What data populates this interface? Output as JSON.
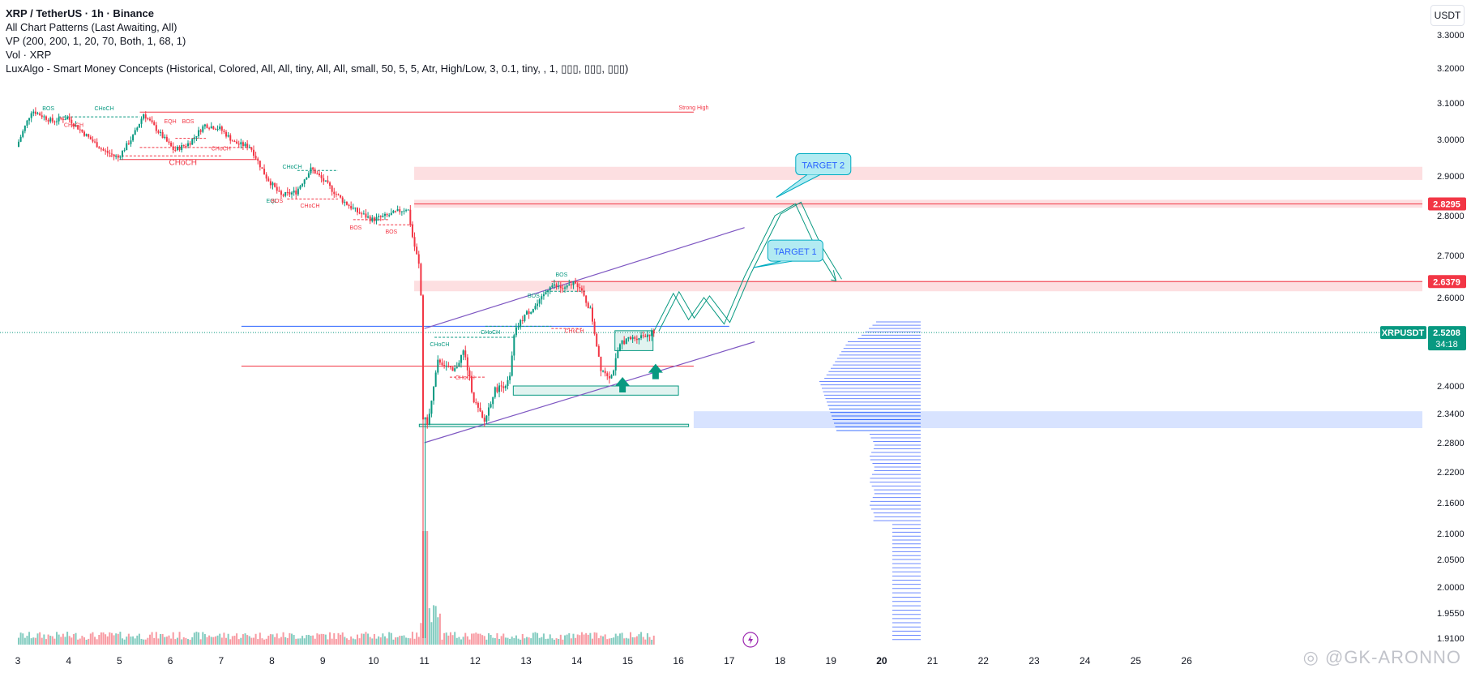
{
  "legend": {
    "line1": "XRP / TetherUS · 1h · Binance",
    "line2": "All Chart Patterns (Last Awaiting, All)",
    "line3": "VP (200, 200, 1, 20, 70, Both, 1, 68, 1)",
    "line4": "Vol · XRP",
    "line5": "LuxAlgo - Smart Money Concepts (Historical, Colored, All, All, tiny, All, All, small, 50, 5, 5, Atr, High/Low, 3, 0.1, tiny, , 1, ▯▯▯, ▯▯▯, ▯▯▯)"
  },
  "currency_button": "USDT",
  "watermark": "◎ @GK-ARONNO",
  "colors": {
    "up": "#089981",
    "down": "#f23645",
    "accent_blue": "#2962ff",
    "vp": "#2962ff",
    "purple": "#7e57c2"
  },
  "chart_data": {
    "type": "candlestick",
    "symbol": "XRPUSDT",
    "interval": "1h",
    "x_ticks": [
      "3",
      "4",
      "5",
      "6",
      "7",
      "8",
      "9",
      "10",
      "11",
      "12",
      "13",
      "14",
      "15",
      "16",
      "17",
      "18",
      "19",
      "20",
      "21",
      "22",
      "23",
      "24",
      "25",
      "26"
    ],
    "y_ticks": [
      "3.3000",
      "3.2000",
      "3.1000",
      "3.0000",
      "2.9000",
      "2.8000",
      "2.7000",
      "2.6000",
      "2.4000",
      "2.3400",
      "2.2800",
      "2.2200",
      "2.1600",
      "2.1000",
      "2.0500",
      "2.0000",
      "1.9550",
      "1.9100"
    ],
    "y_range": [
      1.9,
      3.35
    ],
    "price_path": [
      [
        3.0,
        2.98
      ],
      [
        3.3,
        3.08
      ],
      [
        3.7,
        3.05
      ],
      [
        4.0,
        3.06
      ],
      [
        4.3,
        3.02
      ],
      [
        4.7,
        2.97
      ],
      [
        5.0,
        2.95
      ],
      [
        5.3,
        3.01
      ],
      [
        5.5,
        3.07
      ],
      [
        5.8,
        3.02
      ],
      [
        6.1,
        2.97
      ],
      [
        6.4,
        2.99
      ],
      [
        6.7,
        3.04
      ],
      [
        7.0,
        3.03
      ],
      [
        7.3,
        2.99
      ],
      [
        7.6,
        2.98
      ],
      [
        7.9,
        2.9
      ],
      [
        8.2,
        2.85
      ],
      [
        8.5,
        2.86
      ],
      [
        8.8,
        2.92
      ],
      [
        9.1,
        2.88
      ],
      [
        9.4,
        2.84
      ],
      [
        9.7,
        2.81
      ],
      [
        10.0,
        2.79
      ],
      [
        10.3,
        2.8
      ],
      [
        10.7,
        2.82
      ],
      [
        10.8,
        2.74
      ],
      [
        10.95,
        2.66
      ],
      [
        11.0,
        2.33
      ],
      [
        11.1,
        2.32
      ],
      [
        11.3,
        2.46
      ],
      [
        11.6,
        2.43
      ],
      [
        11.8,
        2.48
      ],
      [
        12.0,
        2.37
      ],
      [
        12.2,
        2.32
      ],
      [
        12.4,
        2.39
      ],
      [
        12.7,
        2.41
      ],
      [
        12.8,
        2.52
      ],
      [
        13.0,
        2.56
      ],
      [
        13.3,
        2.59
      ],
      [
        13.5,
        2.63
      ],
      [
        13.8,
        2.62
      ],
      [
        14.0,
        2.64
      ],
      [
        14.3,
        2.57
      ],
      [
        14.5,
        2.44
      ],
      [
        14.7,
        2.42
      ],
      [
        14.9,
        2.5
      ],
      [
        15.2,
        2.51
      ],
      [
        15.5,
        2.52
      ]
    ],
    "volume_x_range": [
      3,
      15.5
    ],
    "projection_path": [
      [
        15.5,
        2.52
      ],
      [
        15.9,
        2.61
      ],
      [
        16.2,
        2.55
      ],
      [
        16.5,
        2.6
      ],
      [
        16.9,
        2.54
      ],
      [
        17.3,
        2.65
      ],
      [
        17.9,
        2.8
      ],
      [
        18.3,
        2.83
      ],
      [
        18.7,
        2.72
      ],
      [
        19.1,
        2.64
      ]
    ],
    "pattern_upper_line": [
      [
        11.0,
        2.53
      ],
      [
        17.3,
        2.77
      ]
    ],
    "pattern_lower_line": [
      [
        11.0,
        2.28
      ],
      [
        17.5,
        2.5
      ]
    ],
    "blue_horizontal": {
      "price": 2.535,
      "from": 7.4,
      "to": 17.0
    },
    "red_horizontal": {
      "price": 2.445,
      "from": 7.4,
      "to": 16.3
    },
    "strong_high": {
      "price": 3.075,
      "from": 5.4,
      "to": 16.3
    },
    "supply_zones": [
      {
        "lo": 2.89,
        "hi": 2.925
      },
      {
        "lo": 2.82,
        "hi": 2.84
      },
      {
        "lo": 2.615,
        "hi": 2.64
      }
    ],
    "demand_zone": {
      "lo": 2.31,
      "hi": 2.345
    },
    "green_boxes": [
      {
        "x0": 12.75,
        "x1": 16.0,
        "lo": 2.38,
        "hi": 2.4
      },
      {
        "x0": 10.9,
        "x1": 16.2,
        "lo": 2.313,
        "hi": 2.318
      },
      {
        "x0": 14.75,
        "x1": 15.5,
        "lo": 2.48,
        "hi": 2.525
      }
    ],
    "markers": {
      "current_price": "2.5208",
      "countdown": "34:18",
      "symbol_label": "XRPUSDT",
      "level_1": "2.8295",
      "level_2": "2.6379"
    },
    "callouts": [
      {
        "text": "TARGET 2",
        "x": 18.85,
        "price": 2.93
      },
      {
        "text": "TARGET 1",
        "x": 18.3,
        "price": 2.71
      }
    ],
    "smc_labels": [
      {
        "text": "BOS",
        "x": 3.6,
        "price": 3.08,
        "c": "up"
      },
      {
        "text": "CHoCH",
        "x": 4.7,
        "price": 3.08,
        "c": "up"
      },
      {
        "text": "CHoCH",
        "x": 4.1,
        "price": 3.035,
        "c": "down"
      },
      {
        "text": "EQH",
        "x": 6.0,
        "price": 3.045,
        "c": "down"
      },
      {
        "text": "BOS",
        "x": 6.35,
        "price": 3.045,
        "c": "down"
      },
      {
        "text": "CHoCH",
        "x": 7.0,
        "price": 2.97,
        "c": "down"
      },
      {
        "text": "CHoCH",
        "x": 6.25,
        "price": 2.93,
        "c": "down"
      },
      {
        "text": "CHoCH",
        "x": 8.4,
        "price": 2.92,
        "c": "up"
      },
      {
        "text": "EQL",
        "x": 8.0,
        "price": 2.833,
        "c": "up"
      },
      {
        "text": "BOS",
        "x": 8.1,
        "price": 2.833,
        "c": "down"
      },
      {
        "text": "CHoCH",
        "x": 8.75,
        "price": 2.82,
        "c": "down"
      },
      {
        "text": "BOS",
        "x": 9.65,
        "price": 2.765,
        "c": "down"
      },
      {
        "text": "BOS",
        "x": 10.35,
        "price": 2.755,
        "c": "down"
      },
      {
        "text": "BOS",
        "x": 13.7,
        "price": 2.65,
        "c": "up"
      },
      {
        "text": "BOS",
        "x": 13.15,
        "price": 2.6,
        "c": "up"
      },
      {
        "text": "CHoCH",
        "x": 12.3,
        "price": 2.517,
        "c": "up"
      },
      {
        "text": "CHoCH",
        "x": 11.3,
        "price": 2.49,
        "c": "up"
      },
      {
        "text": "CHoCH",
        "x": 11.8,
        "price": 2.415,
        "c": "down"
      },
      {
        "text": "CHoCH",
        "x": 13.95,
        "price": 2.52,
        "c": "down"
      },
      {
        "text": "Strong High",
        "x": 16.3,
        "price": 3.082,
        "c": "down"
      }
    ]
  }
}
